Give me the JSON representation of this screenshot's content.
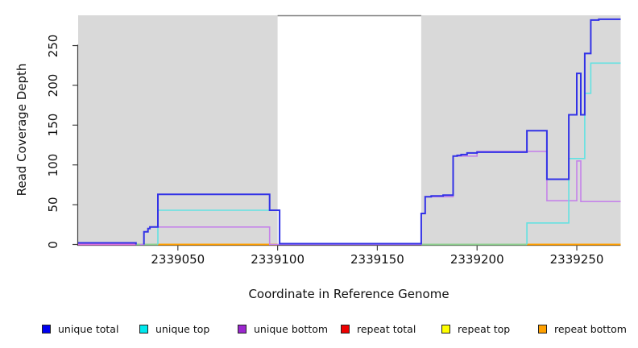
{
  "chart_data": {
    "type": "line",
    "title": "",
    "xlabel": "Coordinate in Reference Genome",
    "ylabel": "Read Coverage Depth",
    "xlim": [
      2339000,
      2339272
    ],
    "ylim": [
      0,
      288
    ],
    "x_ticks": [
      2339050,
      2339100,
      2339150,
      2339200,
      2339250
    ],
    "y_ticks": [
      0,
      50,
      100,
      150,
      200,
      250
    ],
    "grid": false,
    "legend_position": "bottom",
    "panel_bg": "#ffffff",
    "axis_color": "#404040",
    "shaded_regions": [
      {
        "x1": 2339000,
        "x2": 2339100,
        "color": "#d9d9d9"
      },
      {
        "x1": 2339172,
        "x2": 2339272,
        "color": "#d9d9d9"
      }
    ],
    "gap_border": {
      "x1": 2339100,
      "x2": 2339172,
      "color": "#7d7d7d"
    },
    "series": [
      {
        "name": "repeat total",
        "legend_color": "#ee0000",
        "color": "#da70d6",
        "width": 2,
        "segments": [
          [
            [
              2339000,
              0
            ],
            [
              2339029,
              0
            ]
          ]
        ]
      },
      {
        "name": "repeat top",
        "legend_color": "#ffff00",
        "color": "#8fce8f",
        "width": 2,
        "segments": [
          [
            [
              2339029,
              0
            ],
            [
              2339040,
              0
            ]
          ],
          [
            [
              2339172,
              0
            ],
            [
              2339225,
              0
            ]
          ]
        ]
      },
      {
        "name": "repeat bottom",
        "legend_color": "#ffa000",
        "color": "#ff9e00",
        "width": 2,
        "segments": [
          [
            [
              2339040,
              0
            ],
            [
              2339100,
              0
            ]
          ],
          [
            [
              2339225,
              0
            ],
            [
              2339272,
              0
            ]
          ]
        ]
      },
      {
        "name": "unique bottom",
        "legend_color": "#9c27cf",
        "color": "#c583e9",
        "width": 1.6,
        "segments": [
          [
            [
              2339031,
              0
            ],
            [
              2339033,
              0
            ],
            [
              2339033,
              16
            ],
            [
              2339035,
              16
            ],
            [
              2339035,
              20
            ],
            [
              2339036,
              20
            ],
            [
              2339036,
              22
            ],
            [
              2339040,
              22
            ],
            [
              2339096,
              22
            ],
            [
              2339096,
              0
            ],
            [
              2339101,
              0
            ],
            [
              2339172,
              0
            ],
            [
              2339172,
              39
            ],
            [
              2339174,
              39
            ],
            [
              2339174,
              60
            ],
            [
              2339188,
              60
            ],
            [
              2339188,
              111
            ],
            [
              2339200,
              111
            ],
            [
              2339200,
              117
            ],
            [
              2339235,
              117
            ],
            [
              2339235,
              55
            ],
            [
              2339250,
              55
            ],
            [
              2339250,
              105
            ],
            [
              2339252,
              105
            ],
            [
              2339252,
              54
            ],
            [
              2339272,
              54
            ]
          ]
        ]
      },
      {
        "name": "unique top",
        "legend_color": "#00e8ee",
        "color": "#62e2e2",
        "width": 1.6,
        "segments": [
          [
            [
              2339040,
              0
            ],
            [
              2339040,
              43
            ],
            [
              2339101,
              43
            ],
            [
              2339101,
              0
            ]
          ],
          [
            [
              2339225,
              0
            ],
            [
              2339225,
              27
            ],
            [
              2339246,
              27
            ],
            [
              2339246,
              108
            ],
            [
              2339254,
              108
            ],
            [
              2339254,
              190
            ],
            [
              2339257,
              190
            ],
            [
              2339257,
              228
            ],
            [
              2339272,
              228
            ]
          ]
        ]
      },
      {
        "name": "unique total",
        "legend_color": "#0000f0",
        "color": "#3232e6",
        "width": 2,
        "segments": [
          [
            [
              2339000,
              2
            ],
            [
              2339029,
              2
            ],
            [
              2339029,
              0
            ]
          ],
          [
            [
              2339033,
              0
            ],
            [
              2339033,
              16
            ],
            [
              2339035,
              16
            ],
            [
              2339035,
              20
            ],
            [
              2339036,
              20
            ],
            [
              2339036,
              22
            ],
            [
              2339040,
              22
            ],
            [
              2339040,
              63
            ],
            [
              2339096,
              63
            ],
            [
              2339096,
              43
            ],
            [
              2339101,
              43
            ],
            [
              2339101,
              1
            ],
            [
              2339172,
              1
            ],
            [
              2339172,
              39
            ],
            [
              2339174,
              39
            ],
            [
              2339174,
              60
            ],
            [
              2339177,
              60
            ],
            [
              2339177,
              61
            ],
            [
              2339183,
              61
            ],
            [
              2339183,
              62
            ],
            [
              2339188,
              62
            ],
            [
              2339188,
              111
            ],
            [
              2339190,
              111
            ],
            [
              2339190,
              112
            ],
            [
              2339192,
              112
            ],
            [
              2339192,
              113
            ],
            [
              2339195,
              113
            ],
            [
              2339195,
              115
            ],
            [
              2339200,
              115
            ],
            [
              2339200,
              116
            ],
            [
              2339225,
              116
            ],
            [
              2339225,
              143
            ],
            [
              2339235,
              143
            ],
            [
              2339235,
              82
            ],
            [
              2339246,
              82
            ],
            [
              2339246,
              163
            ],
            [
              2339250,
              163
            ],
            [
              2339250,
              215
            ],
            [
              2339252,
              215
            ],
            [
              2339252,
              163
            ],
            [
              2339254,
              163
            ],
            [
              2339254,
              240
            ],
            [
              2339257,
              240
            ],
            [
              2339257,
              282
            ],
            [
              2339261,
              282
            ],
            [
              2339261,
              283
            ],
            [
              2339272,
              283
            ]
          ]
        ]
      }
    ],
    "legend": [
      {
        "label": "unique total"
      },
      {
        "label": "unique top"
      },
      {
        "label": "unique bottom"
      },
      {
        "label": "repeat total"
      },
      {
        "label": "repeat top"
      },
      {
        "label": "repeat bottom"
      }
    ]
  }
}
